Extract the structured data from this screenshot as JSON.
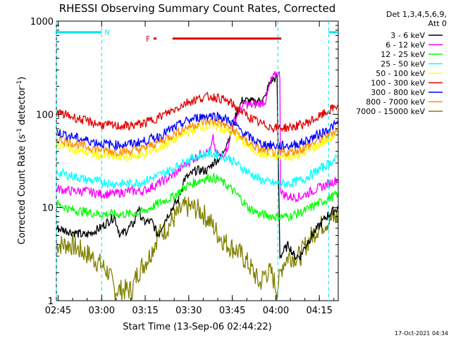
{
  "chart_data": {
    "type": "line",
    "title": "RHESSI Observing Summary Count Rates, Corrected",
    "xlabel": "Start Time (13-Sep-06 02:44:22)",
    "ylabel_main": "Corrected Count Rate (s",
    "ylabel_sup1": "-1",
    "ylabel_mid": " detector",
    "ylabel_sup2": "-1",
    "ylabel_end": ")",
    "x_ticks": [
      "02:45",
      "03:00",
      "03:15",
      "03:30",
      "03:45",
      "04:00",
      "04:15"
    ],
    "x_tick_minutes": [
      0.6,
      15.6,
      30.6,
      45.6,
      60.6,
      75.6,
      90.6
    ],
    "xlim_minutes": [
      0,
      97.1
    ],
    "y_scale": "log",
    "ylim": [
      1,
      1000
    ],
    "y_ticks": [
      "1",
      "10",
      "100",
      "1000"
    ],
    "legend_header": [
      "Det 1,3,4,5,6,9,",
      "Att 0"
    ],
    "legend_position": "right",
    "flags": {
      "night_label": "N",
      "flare_label": "F",
      "night_color": "#00e5ee",
      "flare_color": "#e00000",
      "night_segments": [
        [
          0,
          15.6
        ],
        [
          93.8,
          97.1
        ]
      ],
      "night_boundaries": [
        0,
        15.6,
        76.3,
        93.8
      ],
      "flare_segments": [
        [
          33.5,
          34.5
        ],
        [
          40.0,
          77.5
        ]
      ]
    },
    "series": [
      {
        "name": "3 - 6 keV",
        "color": "#000000",
        "points": [
          [
            0,
            6
          ],
          [
            5,
            5.5
          ],
          [
            10,
            5
          ],
          [
            15,
            6
          ],
          [
            20,
            8
          ],
          [
            22,
            5
          ],
          [
            25,
            6
          ],
          [
            27,
            7
          ],
          [
            28,
            10
          ],
          [
            30,
            7
          ],
          [
            33,
            7
          ],
          [
            35,
            5
          ],
          [
            37,
            7
          ],
          [
            40,
            10
          ],
          [
            42,
            12
          ],
          [
            44,
            20
          ],
          [
            46,
            22
          ],
          [
            48,
            25
          ],
          [
            50,
            25
          ],
          [
            52,
            25
          ],
          [
            54,
            30
          ],
          [
            55,
            32
          ],
          [
            57,
            35
          ],
          [
            58,
            45
          ],
          [
            60,
            60
          ],
          [
            62,
            100
          ],
          [
            64,
            140
          ],
          [
            66,
            140
          ],
          [
            68,
            135
          ],
          [
            70,
            140
          ],
          [
            72,
            150
          ],
          [
            73,
            200
          ],
          [
            74,
            230
          ],
          [
            75,
            240
          ],
          [
            76,
            250
          ],
          [
            76.4,
            40
          ],
          [
            77,
            3
          ],
          [
            80,
            4
          ],
          [
            82,
            3
          ],
          [
            84,
            3
          ],
          [
            86,
            4
          ],
          [
            88,
            5
          ],
          [
            90,
            6
          ],
          [
            93,
            8
          ],
          [
            97,
            10
          ]
        ]
      },
      {
        "name": "6 - 12 keV",
        "color": "#ff00ff",
        "points": [
          [
            0,
            16
          ],
          [
            5,
            15
          ],
          [
            10,
            15
          ],
          [
            15,
            14
          ],
          [
            20,
            14
          ],
          [
            25,
            15
          ],
          [
            30,
            15
          ],
          [
            35,
            18
          ],
          [
            40,
            22
          ],
          [
            45,
            30
          ],
          [
            50,
            38
          ],
          [
            53,
            40
          ],
          [
            54,
            55
          ],
          [
            55,
            38
          ],
          [
            57,
            35
          ],
          [
            59,
            45
          ],
          [
            61,
            80
          ],
          [
            63,
            110
          ],
          [
            65,
            130
          ],
          [
            67,
            125
          ],
          [
            70,
            130
          ],
          [
            72,
            140
          ],
          [
            74,
            230
          ],
          [
            76,
            280
          ],
          [
            77,
            260
          ],
          [
            76.5,
            18
          ],
          [
            78,
            14
          ],
          [
            80,
            13
          ],
          [
            84,
            13
          ],
          [
            88,
            15
          ],
          [
            92,
            17
          ],
          [
            97,
            20
          ]
        ]
      },
      {
        "name": "12 - 25 keV",
        "color": "#00ff00",
        "points": [
          [
            0,
            11
          ],
          [
            5,
            9.5
          ],
          [
            10,
            9
          ],
          [
            15,
            8.5
          ],
          [
            20,
            8.5
          ],
          [
            25,
            8.5
          ],
          [
            30,
            9
          ],
          [
            35,
            11
          ],
          [
            40,
            13
          ],
          [
            45,
            17
          ],
          [
            50,
            20
          ],
          [
            53,
            21
          ],
          [
            56,
            20
          ],
          [
            60,
            16
          ],
          [
            63,
            13
          ],
          [
            66,
            10
          ],
          [
            70,
            8.5
          ],
          [
            75,
            8
          ],
          [
            80,
            8
          ],
          [
            85,
            9
          ],
          [
            90,
            11
          ],
          [
            97,
            14
          ]
        ]
      },
      {
        "name": "25 - 50 keV",
        "color": "#00ffff",
        "points": [
          [
            0,
            24
          ],
          [
            5,
            22
          ],
          [
            10,
            20
          ],
          [
            15,
            19
          ],
          [
            20,
            18
          ],
          [
            25,
            18
          ],
          [
            30,
            19
          ],
          [
            35,
            22
          ],
          [
            40,
            26
          ],
          [
            45,
            32
          ],
          [
            50,
            37
          ],
          [
            53,
            38
          ],
          [
            56,
            37
          ],
          [
            60,
            33
          ],
          [
            63,
            28
          ],
          [
            66,
            24
          ],
          [
            70,
            20
          ],
          [
            75,
            18
          ],
          [
            80,
            18
          ],
          [
            85,
            20
          ],
          [
            90,
            25
          ],
          [
            97,
            34
          ]
        ]
      },
      {
        "name": "50 - 100 keV",
        "color": "#ffff00",
        "points": [
          [
            0,
            48
          ],
          [
            5,
            43
          ],
          [
            10,
            39
          ],
          [
            15,
            36
          ],
          [
            20,
            35
          ],
          [
            25,
            35
          ],
          [
            30,
            37
          ],
          [
            35,
            43
          ],
          [
            40,
            52
          ],
          [
            45,
            64
          ],
          [
            50,
            73
          ],
          [
            53,
            75
          ],
          [
            56,
            73
          ],
          [
            60,
            64
          ],
          [
            63,
            55
          ],
          [
            66,
            46
          ],
          [
            70,
            38
          ],
          [
            75,
            35
          ],
          [
            80,
            35
          ],
          [
            85,
            38
          ],
          [
            90,
            46
          ],
          [
            97,
            62
          ]
        ]
      },
      {
        "name": "100 - 300 keV",
        "color": "#e00000",
        "points": [
          [
            0,
            105
          ],
          [
            5,
            95
          ],
          [
            10,
            85
          ],
          [
            15,
            78
          ],
          [
            20,
            75
          ],
          [
            25,
            75
          ],
          [
            30,
            80
          ],
          [
            35,
            92
          ],
          [
            40,
            110
          ],
          [
            45,
            135
          ],
          [
            50,
            150
          ],
          [
            53,
            155
          ],
          [
            56,
            150
          ],
          [
            60,
            132
          ],
          [
            63,
            112
          ],
          [
            66,
            95
          ],
          [
            70,
            80
          ],
          [
            75,
            72
          ],
          [
            80,
            72
          ],
          [
            85,
            78
          ],
          [
            90,
            92
          ],
          [
            97,
            125
          ]
        ]
      },
      {
        "name": "300 - 800 keV",
        "color": "#0000ff",
        "points": [
          [
            0,
            65
          ],
          [
            5,
            58
          ],
          [
            10,
            53
          ],
          [
            15,
            49
          ],
          [
            20,
            47
          ],
          [
            25,
            48
          ],
          [
            30,
            51
          ],
          [
            35,
            58
          ],
          [
            40,
            70
          ],
          [
            45,
            85
          ],
          [
            50,
            95
          ],
          [
            53,
            97
          ],
          [
            56,
            95
          ],
          [
            60,
            84
          ],
          [
            63,
            70
          ],
          [
            66,
            58
          ],
          [
            70,
            49
          ],
          [
            75,
            46
          ],
          [
            80,
            46
          ],
          [
            85,
            50
          ],
          [
            90,
            60
          ],
          [
            97,
            80
          ]
        ]
      },
      {
        "name": "800 - 7000 keV",
        "color": "#ff8c00",
        "points": [
          [
            0,
            55
          ],
          [
            5,
            50
          ],
          [
            10,
            45
          ],
          [
            15,
            42
          ],
          [
            20,
            40
          ],
          [
            25,
            40
          ],
          [
            30,
            43
          ],
          [
            35,
            50
          ],
          [
            40,
            60
          ],
          [
            45,
            73
          ],
          [
            50,
            82
          ],
          [
            53,
            84
          ],
          [
            56,
            82
          ],
          [
            60,
            72
          ],
          [
            63,
            60
          ],
          [
            66,
            50
          ],
          [
            70,
            42
          ],
          [
            75,
            39
          ],
          [
            80,
            39
          ],
          [
            85,
            43
          ],
          [
            90,
            52
          ],
          [
            97,
            70
          ]
        ]
      },
      {
        "name": "7000 - 15000 keV",
        "color": "#808000",
        "points": [
          [
            0,
            4
          ],
          [
            5,
            4
          ],
          [
            8,
            3.5
          ],
          [
            12,
            3
          ],
          [
            15,
            2.5
          ],
          [
            18,
            2
          ],
          [
            20,
            1.3
          ],
          [
            22,
            1.3
          ],
          [
            26,
            1.3
          ],
          [
            28,
            2
          ],
          [
            32,
            3
          ],
          [
            35,
            5
          ],
          [
            38,
            6
          ],
          [
            41,
            8
          ],
          [
            44,
            10
          ],
          [
            47,
            10
          ],
          [
            50,
            9
          ],
          [
            53,
            7
          ],
          [
            56,
            5
          ],
          [
            59,
            4
          ],
          [
            62,
            3.5
          ],
          [
            64,
            3
          ],
          [
            66,
            2.5
          ],
          [
            68,
            2
          ],
          [
            70,
            1.5
          ],
          [
            72,
            2
          ],
          [
            74,
            2
          ],
          [
            76,
            1.3
          ],
          [
            78,
            2.5
          ],
          [
            80,
            3
          ],
          [
            84,
            3
          ],
          [
            86,
            4
          ],
          [
            88,
            5
          ],
          [
            90,
            6
          ],
          [
            93,
            7
          ],
          [
            97,
            8
          ]
        ]
      }
    ]
  },
  "footer_timestamp": "17-Oct-2021 04:34"
}
